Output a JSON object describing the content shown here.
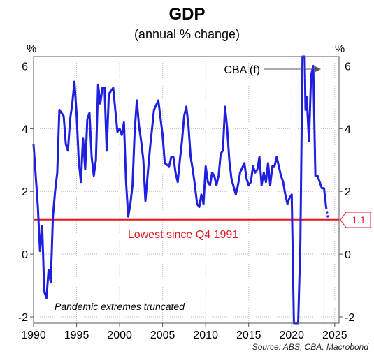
{
  "chart_data": {
    "type": "line",
    "title": "GDP",
    "subtitle": "(annual % change)",
    "y_unit_left": "%",
    "y_unit_right": "%",
    "xlim": [
      1990,
      2025.5
    ],
    "ylim": [
      -2.2,
      6.3
    ],
    "x_ticks": [
      1990,
      1995,
      2000,
      2005,
      2010,
      2015,
      2020,
      2025
    ],
    "x_tick_labels": [
      "1990",
      "1995",
      "2000",
      "2005",
      "2010",
      "2015",
      "2020",
      "2025"
    ],
    "y_ticks": [
      -2,
      0,
      2,
      4,
      6
    ],
    "y_tick_labels": [
      "-2",
      "0",
      "2",
      "4",
      "6"
    ],
    "grid": true,
    "series": [
      {
        "color": "#1f1fe0",
        "points": [
          [
            1990.0,
            3.5
          ],
          [
            1990.5,
            1.5
          ],
          [
            1990.75,
            0.1
          ],
          [
            1991.0,
            0.9
          ],
          [
            1991.25,
            -1.2
          ],
          [
            1991.5,
            -1.4
          ],
          [
            1991.75,
            -0.5
          ],
          [
            1992.0,
            -0.9
          ],
          [
            1992.25,
            1.2
          ],
          [
            1992.5,
            2.0
          ],
          [
            1992.75,
            2.6
          ],
          [
            1993.0,
            4.6
          ],
          [
            1993.5,
            4.4
          ],
          [
            1993.75,
            3.5
          ],
          [
            1994.0,
            3.3
          ],
          [
            1994.25,
            4.3
          ],
          [
            1994.5,
            4.8
          ],
          [
            1994.75,
            5.5
          ],
          [
            1995.0,
            4.5
          ],
          [
            1995.25,
            3.0
          ],
          [
            1995.5,
            2.3
          ],
          [
            1995.75,
            3.7
          ],
          [
            1996.0,
            2.7
          ],
          [
            1996.25,
            4.3
          ],
          [
            1996.5,
            4.5
          ],
          [
            1996.75,
            3.1
          ],
          [
            1997.0,
            2.5
          ],
          [
            1997.25,
            3.0
          ],
          [
            1997.5,
            5.4
          ],
          [
            1997.75,
            4.8
          ],
          [
            1998.0,
            5.3
          ],
          [
            1998.25,
            5.3
          ],
          [
            1998.5,
            3.3
          ],
          [
            1998.75,
            5.1
          ],
          [
            1999.0,
            5.2
          ],
          [
            1999.25,
            5.3
          ],
          [
            1999.5,
            4.6
          ],
          [
            1999.75,
            3.9
          ],
          [
            2000.0,
            4.0
          ],
          [
            2000.25,
            3.8
          ],
          [
            2000.5,
            4.2
          ],
          [
            2000.75,
            2.3
          ],
          [
            2001.0,
            1.2
          ],
          [
            2001.25,
            1.6
          ],
          [
            2001.5,
            2.2
          ],
          [
            2001.75,
            3.9
          ],
          [
            2002.0,
            4.9
          ],
          [
            2002.25,
            4.1
          ],
          [
            2002.5,
            3.6
          ],
          [
            2002.75,
            3.0
          ],
          [
            2003.0,
            1.7
          ],
          [
            2003.5,
            3.3
          ],
          [
            2004.0,
            4.6
          ],
          [
            2004.5,
            4.9
          ],
          [
            2005.0,
            3.8
          ],
          [
            2005.25,
            2.9
          ],
          [
            2005.75,
            2.8
          ],
          [
            2006.0,
            3.1
          ],
          [
            2006.25,
            3.1
          ],
          [
            2006.5,
            2.6
          ],
          [
            2006.75,
            2.3
          ],
          [
            2007.0,
            3.0
          ],
          [
            2007.25,
            3.6
          ],
          [
            2007.5,
            4.4
          ],
          [
            2007.75,
            4.7
          ],
          [
            2008.0,
            4.1
          ],
          [
            2008.25,
            3.1
          ],
          [
            2008.5,
            2.7
          ],
          [
            2008.75,
            2.2
          ],
          [
            2009.0,
            1.6
          ],
          [
            2009.25,
            1.5
          ],
          [
            2009.5,
            1.9
          ],
          [
            2009.75,
            1.6
          ],
          [
            2010.0,
            2.8
          ],
          [
            2010.25,
            2.3
          ],
          [
            2010.5,
            2.2
          ],
          [
            2010.75,
            2.6
          ],
          [
            2011.0,
            2.5
          ],
          [
            2011.25,
            2.2
          ],
          [
            2011.5,
            2.5
          ],
          [
            2011.75,
            3.2
          ],
          [
            2012.0,
            3.3
          ],
          [
            2012.25,
            4.7
          ],
          [
            2012.5,
            4.0
          ],
          [
            2012.75,
            3.0
          ],
          [
            2013.0,
            2.4
          ],
          [
            2013.5,
            1.9
          ],
          [
            2013.75,
            2.2
          ],
          [
            2014.0,
            2.6
          ],
          [
            2014.5,
            2.9
          ],
          [
            2014.75,
            2.4
          ],
          [
            2015.0,
            2.2
          ],
          [
            2015.25,
            2.3
          ],
          [
            2015.5,
            2.8
          ],
          [
            2015.75,
            2.6
          ],
          [
            2016.0,
            2.7
          ],
          [
            2016.25,
            3.1
          ],
          [
            2016.5,
            2.2
          ],
          [
            2016.75,
            2.6
          ],
          [
            2017.0,
            2.3
          ],
          [
            2017.25,
            2.9
          ],
          [
            2017.5,
            2.2
          ],
          [
            2017.75,
            2.8
          ],
          [
            2018.0,
            2.8
          ],
          [
            2018.25,
            3.1
          ],
          [
            2018.5,
            2.8
          ],
          [
            2018.75,
            2.5
          ],
          [
            2019.0,
            2.3
          ],
          [
            2019.25,
            1.9
          ],
          [
            2019.5,
            1.6
          ],
          [
            2019.75,
            1.8
          ],
          [
            2020.0,
            1.9
          ],
          [
            2020.25,
            -2.2
          ],
          [
            2020.75,
            -2.2
          ],
          [
            2021.0,
            0.3
          ],
          [
            2021.25,
            6.3
          ],
          [
            2021.5,
            6.3
          ],
          [
            2021.6,
            4.6
          ],
          [
            2021.75,
            5.0
          ],
          [
            2022.0,
            3.6
          ],
          [
            2022.25,
            5.7
          ],
          [
            2022.5,
            6.0
          ],
          [
            2022.75,
            2.5
          ],
          [
            2023.0,
            2.5
          ],
          [
            2023.5,
            2.1
          ],
          [
            2023.75,
            2.1
          ],
          [
            2024.0,
            1.5
          ]
        ]
      },
      {
        "color": "#1f1fe0",
        "style": "dashed",
        "points": [
          [
            2024.0,
            1.5
          ],
          [
            2024.25,
            1.1
          ]
        ]
      }
    ],
    "reference_line": {
      "y": 1.1,
      "color": "#e8141c"
    },
    "forecast_start": 2023.75,
    "annotations": {
      "lowest": "Lowest since Q4 1991",
      "cba": "CBA (f)",
      "truncated": "Pandemic extremes truncated",
      "value_tag": "1.1"
    },
    "source": "Source: ABS, CBA, Macrobond"
  }
}
